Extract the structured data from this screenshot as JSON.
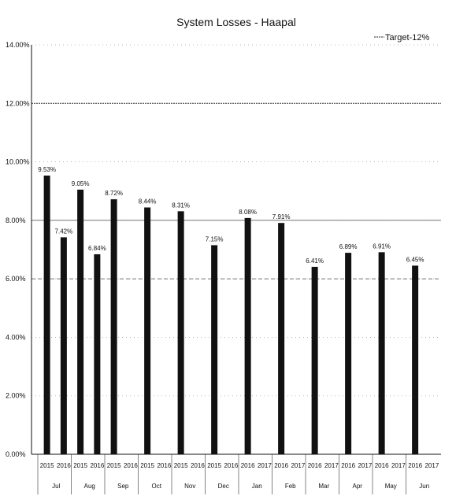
{
  "chart_data": {
    "type": "bar",
    "title": "System Losses - Haapal",
    "legend_label": "Target-12%",
    "legend_placement": "top-right",
    "y_ticks": [
      "0.00%",
      "2.00%",
      "4.00%",
      "6.00%",
      "8.00%",
      "10.00%",
      "12.00%",
      "14.00%"
    ],
    "ylim": [
      0,
      14
    ],
    "grid": "dotted horizontal",
    "target_value": 12,
    "reference_lines": [
      8,
      6
    ],
    "bar_color": "#111111",
    "years": [
      "2015",
      "2016",
      "2015",
      "2016",
      "2015",
      "2016",
      "2015",
      "2016",
      "2015",
      "2016",
      "2015",
      "2016",
      "2016",
      "2017",
      "2016",
      "2017",
      "2016",
      "2017",
      "2016",
      "2017",
      "2016",
      "2017",
      "2016",
      "2017"
    ],
    "months": [
      "Jul",
      "Aug",
      "Sep",
      "Oct",
      "Nov",
      "Dec",
      "Jan",
      "Feb",
      "Mar",
      "Apr",
      "May",
      "Jun"
    ],
    "series": [
      {
        "values": [
          9.53,
          7.42,
          9.05,
          6.84,
          8.72,
          null,
          8.44,
          null,
          8.31,
          null,
          7.15,
          null,
          8.08,
          null,
          7.91,
          null,
          6.41,
          null,
          6.89,
          null,
          6.91,
          null,
          6.45,
          null
        ],
        "labels": [
          "9.53%",
          "7.42%",
          "9.05%",
          "6.84%",
          "8.72%",
          "",
          "8.44%",
          "",
          "8.31%",
          "",
          "7.15%",
          "",
          "8.08%",
          "",
          "7.91%",
          "",
          "6.41%",
          "",
          "6.89%",
          "",
          "6.91%",
          "",
          "6.45%",
          ""
        ]
      }
    ]
  }
}
